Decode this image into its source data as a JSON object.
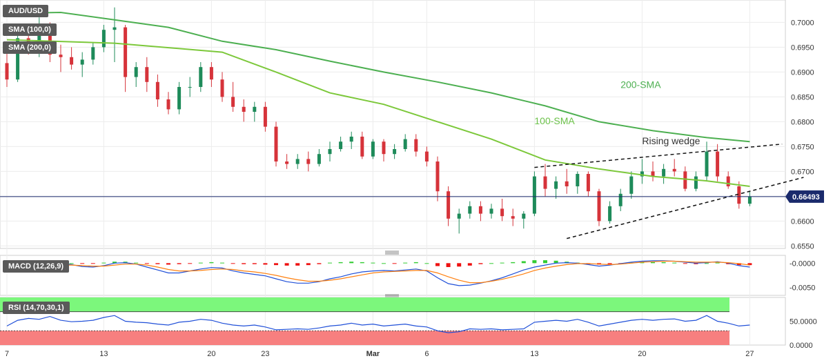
{
  "chart_data": {
    "type": "candlestick",
    "symbol": "AUD/USD",
    "price_label": "0.66493",
    "last_price": 0.66493,
    "ylim": [
      0.6545,
      0.7045
    ],
    "y_ticks": [
      "0.7000",
      "0.6950",
      "0.6900",
      "0.6850",
      "0.6800",
      "0.6750",
      "0.6700",
      "0.6650",
      "0.6600",
      "0.6550"
    ],
    "x_ticks": [
      {
        "label": "7",
        "idx": 0
      },
      {
        "label": "13",
        "idx": 9
      },
      {
        "label": "20",
        "idx": 19
      },
      {
        "label": "23",
        "idx": 24
      },
      {
        "label": "Mar",
        "idx": 34
      },
      {
        "label": "6",
        "idx": 39
      },
      {
        "label": "13",
        "idx": 49
      },
      {
        "label": "20",
        "idx": 59
      },
      {
        "label": "27",
        "idx": 69
      }
    ],
    "ohlc": [
      [
        0.6918,
        0.695,
        0.687,
        0.6885
      ],
      [
        0.6885,
        0.6985,
        0.688,
        0.6968
      ],
      [
        0.6968,
        0.6995,
        0.6935,
        0.6945
      ],
      [
        0.6945,
        0.701,
        0.693,
        0.6985
      ],
      [
        0.6985,
        0.7,
        0.692,
        0.6935
      ],
      [
        0.6935,
        0.6955,
        0.69,
        0.693
      ],
      [
        0.693,
        0.695,
        0.6905,
        0.6915
      ],
      [
        0.6915,
        0.694,
        0.689,
        0.6925
      ],
      [
        0.6925,
        0.696,
        0.6915,
        0.695
      ],
      [
        0.695,
        0.6995,
        0.694,
        0.6985
      ],
      [
        0.6985,
        0.703,
        0.692,
        0.699
      ],
      [
        0.699,
        0.6995,
        0.686,
        0.689
      ],
      [
        0.689,
        0.692,
        0.687,
        0.691
      ],
      [
        0.691,
        0.693,
        0.686,
        0.688
      ],
      [
        0.688,
        0.6895,
        0.683,
        0.6845
      ],
      [
        0.6845,
        0.686,
        0.6815,
        0.6825
      ],
      [
        0.6825,
        0.688,
        0.6815,
        0.687
      ],
      [
        0.687,
        0.689,
        0.685,
        0.687
      ],
      [
        0.687,
        0.692,
        0.686,
        0.691
      ],
      [
        0.691,
        0.692,
        0.687,
        0.6885
      ],
      [
        0.6885,
        0.69,
        0.684,
        0.685
      ],
      [
        0.685,
        0.688,
        0.682,
        0.683
      ],
      [
        0.683,
        0.6845,
        0.68,
        0.682
      ],
      [
        0.682,
        0.684,
        0.68,
        0.683
      ],
      [
        0.683,
        0.684,
        0.678,
        0.679
      ],
      [
        0.679,
        0.68,
        0.671,
        0.672
      ],
      [
        0.672,
        0.6735,
        0.6705,
        0.6715
      ],
      [
        0.6715,
        0.6735,
        0.6705,
        0.6725
      ],
      [
        0.6725,
        0.674,
        0.67,
        0.6715
      ],
      [
        0.6715,
        0.6745,
        0.671,
        0.6735
      ],
      [
        0.6735,
        0.676,
        0.672,
        0.6745
      ],
      [
        0.6745,
        0.677,
        0.674,
        0.676
      ],
      [
        0.676,
        0.678,
        0.6745,
        0.677
      ],
      [
        0.677,
        0.678,
        0.6725,
        0.673
      ],
      [
        0.673,
        0.6765,
        0.6725,
        0.676
      ],
      [
        0.676,
        0.6765,
        0.672,
        0.6735
      ],
      [
        0.6735,
        0.6755,
        0.6725,
        0.6745
      ],
      [
        0.6745,
        0.6775,
        0.674,
        0.6765
      ],
      [
        0.6765,
        0.6775,
        0.673,
        0.674
      ],
      [
        0.674,
        0.675,
        0.671,
        0.672
      ],
      [
        0.672,
        0.673,
        0.664,
        0.666
      ],
      [
        0.666,
        0.667,
        0.659,
        0.6605
      ],
      [
        0.6605,
        0.6625,
        0.6575,
        0.6615
      ],
      [
        0.6615,
        0.664,
        0.6605,
        0.663
      ],
      [
        0.663,
        0.664,
        0.66,
        0.6615
      ],
      [
        0.6615,
        0.6635,
        0.6605,
        0.6625
      ],
      [
        0.6625,
        0.6645,
        0.66,
        0.661
      ],
      [
        0.661,
        0.6625,
        0.659,
        0.6605
      ],
      [
        0.6605,
        0.662,
        0.6585,
        0.6615
      ],
      [
        0.6615,
        0.67,
        0.661,
        0.669
      ],
      [
        0.669,
        0.6715,
        0.665,
        0.6665
      ],
      [
        0.6665,
        0.669,
        0.6645,
        0.668
      ],
      [
        0.668,
        0.6705,
        0.6655,
        0.667
      ],
      [
        0.667,
        0.67,
        0.6655,
        0.6695
      ],
      [
        0.6695,
        0.67,
        0.665,
        0.666
      ],
      [
        0.666,
        0.6665,
        0.659,
        0.66
      ],
      [
        0.66,
        0.664,
        0.6595,
        0.663
      ],
      [
        0.663,
        0.6665,
        0.662,
        0.6655
      ],
      [
        0.6655,
        0.67,
        0.6645,
        0.669
      ],
      [
        0.669,
        0.6725,
        0.6675,
        0.67
      ],
      [
        0.67,
        0.672,
        0.668,
        0.669
      ],
      [
        0.669,
        0.6715,
        0.6675,
        0.6705
      ],
      [
        0.6705,
        0.6725,
        0.669,
        0.67
      ],
      [
        0.67,
        0.671,
        0.666,
        0.6665
      ],
      [
        0.6665,
        0.67,
        0.666,
        0.669
      ],
      [
        0.669,
        0.676,
        0.668,
        0.674
      ],
      [
        0.674,
        0.6755,
        0.668,
        0.669
      ],
      [
        0.669,
        0.67,
        0.6665,
        0.667
      ],
      [
        0.667,
        0.668,
        0.6625,
        0.6635
      ],
      [
        0.6635,
        0.666,
        0.663,
        0.6649
      ]
    ],
    "sma100": [
      [
        0,
        0.6965
      ],
      [
        10,
        0.6958
      ],
      [
        20,
        0.694
      ],
      [
        25,
        0.69
      ],
      [
        30,
        0.6858
      ],
      [
        35,
        0.6835
      ],
      [
        40,
        0.68
      ],
      [
        45,
        0.6765
      ],
      [
        50,
        0.6723
      ],
      [
        55,
        0.6705
      ],
      [
        60,
        0.669
      ],
      [
        65,
        0.6681
      ],
      [
        69,
        0.667
      ]
    ],
    "sma200": [
      [
        0,
        0.7018
      ],
      [
        5,
        0.702
      ],
      [
        10,
        0.7005
      ],
      [
        15,
        0.699
      ],
      [
        20,
        0.6962
      ],
      [
        25,
        0.6945
      ],
      [
        30,
        0.6922
      ],
      [
        35,
        0.69
      ],
      [
        40,
        0.688
      ],
      [
        45,
        0.6858
      ],
      [
        50,
        0.6832
      ],
      [
        55,
        0.68
      ],
      [
        60,
        0.6782
      ],
      [
        65,
        0.6768
      ],
      [
        69,
        0.676
      ]
    ],
    "wedge_upper": [
      [
        49,
        0.6708
      ],
      [
        72,
        0.6755
      ]
    ],
    "wedge_lower": [
      [
        52,
        0.6565
      ],
      [
        74,
        0.6688
      ]
    ],
    "annotations": [
      {
        "text": "200-SMA",
        "x": 57,
        "y": 0.6868,
        "color": "#4caf50"
      },
      {
        "text": "100-SMA",
        "x": 49,
        "y": 0.6795,
        "color": "#6cc24a"
      },
      {
        "text": "Rising wedge",
        "x": 59,
        "y": 0.6755,
        "color": "#333333"
      }
    ],
    "macd": {
      "label": "MACD (12,26,9)",
      "ylim": [
        -0.0066,
        0.0016
      ],
      "y_ticks": [
        "-0.0000",
        "-0.0050"
      ],
      "hist": [
        0.0001,
        0.0002,
        0.0002,
        0.0003,
        0.0002,
        0.0001,
        0.0,
        -0.0001,
        -0.0001,
        0.0001,
        0.0003,
        0.0003,
        0.0001,
        -0.0001,
        -0.0002,
        -0.0003,
        -0.0002,
        -0.0001,
        0.0001,
        0.0002,
        0.0001,
        -0.0001,
        -0.0002,
        -0.0002,
        -0.0003,
        -0.0004,
        -0.0005,
        -0.0005,
        -0.0004,
        -0.0002,
        0.0001,
        0.0002,
        0.0003,
        0.0002,
        0.0001,
        0.0,
        -0.0001,
        0.0001,
        0.0002,
        0.0,
        -0.0006,
        -0.0008,
        -0.0007,
        -0.0005,
        -0.0002,
        0.0,
        0.0001,
        0.0002,
        0.0004,
        0.0006,
        0.0006,
        0.0005,
        0.0003,
        0.0001,
        -0.0002,
        -0.0003,
        -0.0002,
        -0.0001,
        0.0001,
        0.0002,
        0.0002,
        0.0002,
        0.0001,
        -0.0001,
        -0.0002,
        0.0,
        0.0001,
        -0.0002,
        -0.0004,
        -0.0004
      ],
      "macd_line": [
        -0.0015,
        -0.001,
        -0.0006,
        -0.0003,
        -0.0001,
        -0.0001,
        -0.0003,
        -0.0007,
        -0.0008,
        -0.0005,
        0.0,
        0.0001,
        -0.0002,
        -0.0008,
        -0.0014,
        -0.002,
        -0.002,
        -0.0016,
        -0.0012,
        -0.0009,
        -0.001,
        -0.0016,
        -0.002,
        -0.0023,
        -0.0026,
        -0.0032,
        -0.0038,
        -0.0041,
        -0.0041,
        -0.0038,
        -0.0032,
        -0.0028,
        -0.0022,
        -0.0018,
        -0.0016,
        -0.0015,
        -0.0016,
        -0.0014,
        -0.0012,
        -0.0016,
        -0.003,
        -0.0042,
        -0.0046,
        -0.0045,
        -0.0041,
        -0.0036,
        -0.003,
        -0.0022,
        -0.0014,
        -0.0008,
        -0.0004,
        0.0,
        0.0001,
        0.0,
        -0.0003,
        -0.0006,
        -0.0004,
        -0.0001,
        0.0002,
        0.0004,
        0.0005,
        0.0005,
        0.0004,
        0.0002,
        0.0,
        0.0001,
        0.0003,
        0.0,
        -0.0005,
        -0.0008
      ],
      "signal_line": [
        -0.0014,
        -0.0013,
        -0.0011,
        -0.0008,
        -0.0005,
        -0.0004,
        -0.0004,
        -0.0005,
        -0.0006,
        -0.0006,
        -0.0004,
        -0.0002,
        -0.0002,
        -0.0004,
        -0.0008,
        -0.0013,
        -0.0016,
        -0.0016,
        -0.0015,
        -0.0013,
        -0.0012,
        -0.0013,
        -0.0016,
        -0.0018,
        -0.0021,
        -0.0025,
        -0.003,
        -0.0034,
        -0.0037,
        -0.0037,
        -0.0035,
        -0.0032,
        -0.0028,
        -0.0024,
        -0.002,
        -0.0018,
        -0.0017,
        -0.0016,
        -0.0015,
        -0.0015,
        -0.002,
        -0.0028,
        -0.0035,
        -0.004,
        -0.004,
        -0.0037,
        -0.0033,
        -0.0028,
        -0.0022,
        -0.0015,
        -0.001,
        -0.0006,
        -0.0003,
        -0.0001,
        -0.0001,
        -0.0002,
        -0.0003,
        -0.0002,
        0.0,
        0.0002,
        0.0003,
        0.0004,
        0.0004,
        0.0003,
        0.0002,
        0.0002,
        0.0002,
        0.0001,
        -0.0001,
        -0.0004
      ]
    },
    "rsi": {
      "label": "RSI (14,70,30,1)",
      "ylim": [
        0,
        100
      ],
      "y_ticks": [
        "50.0000",
        "0.0000"
      ],
      "overbought": 70,
      "oversold": 30,
      "values": [
        40,
        52,
        56,
        54,
        60,
        52,
        49,
        50,
        52,
        58,
        62,
        50,
        48,
        47,
        44,
        42,
        48,
        50,
        54,
        52,
        46,
        42,
        40,
        42,
        38,
        32,
        33,
        34,
        33,
        36,
        40,
        42,
        46,
        42,
        44,
        40,
        42,
        44,
        40,
        38,
        30,
        26,
        28,
        34,
        33,
        34,
        32,
        33,
        34,
        48,
        50,
        52,
        50,
        54,
        48,
        40,
        44,
        48,
        52,
        54,
        52,
        54,
        55,
        50,
        52,
        62,
        50,
        46,
        40,
        42
      ]
    }
  }
}
